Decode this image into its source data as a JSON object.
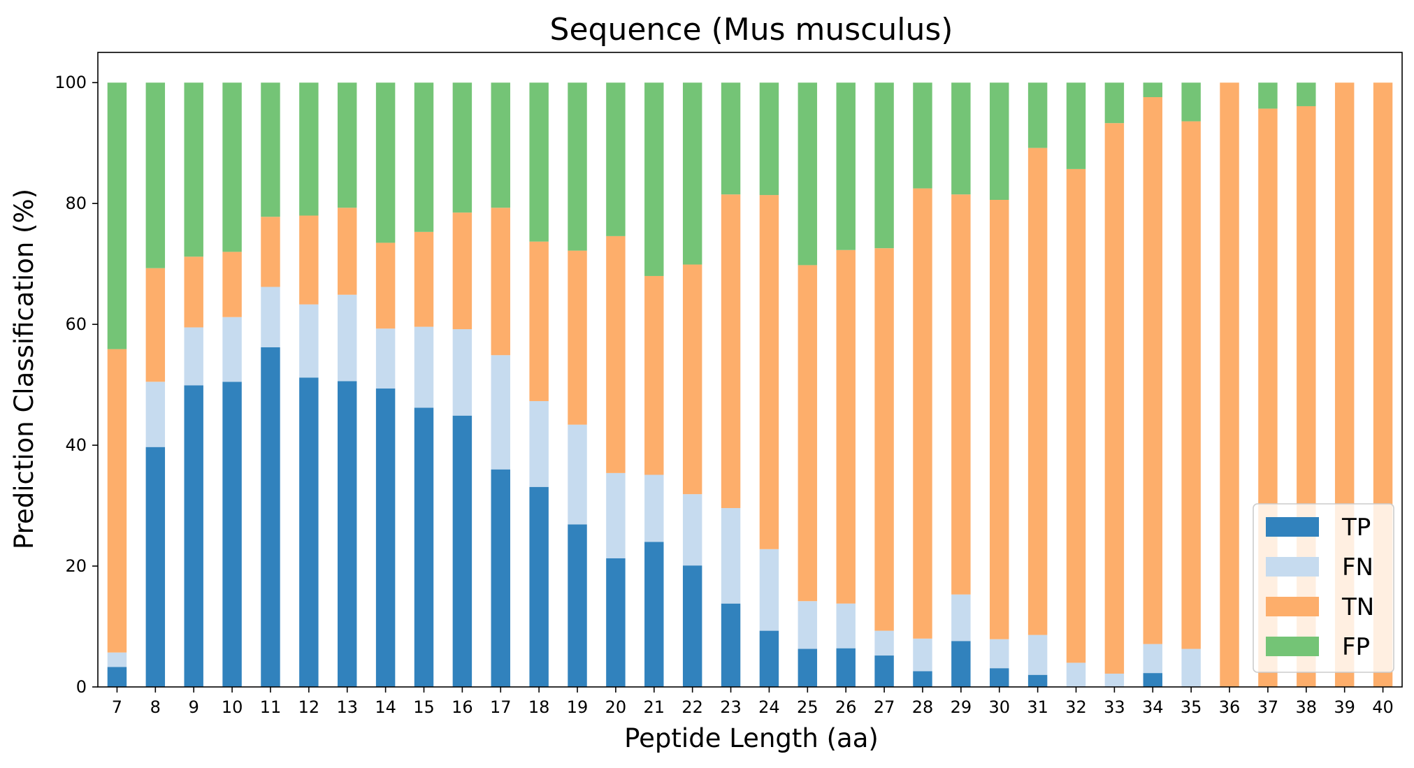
{
  "chart_data": {
    "type": "bar",
    "stacked": true,
    "title": "Sequence (Mus musculus)",
    "xlabel": "Peptide Length (aa)",
    "ylabel": "Prediction Classification (%)",
    "ylim": [
      0,
      105
    ],
    "yticks": [
      0,
      20,
      40,
      60,
      80,
      100
    ],
    "legend_position": "lower-right",
    "grid": false,
    "categories": [
      "7",
      "8",
      "9",
      "10",
      "11",
      "12",
      "13",
      "14",
      "15",
      "16",
      "17",
      "18",
      "19",
      "20",
      "21",
      "22",
      "23",
      "24",
      "25",
      "26",
      "27",
      "28",
      "29",
      "30",
      "31",
      "32",
      "33",
      "34",
      "35",
      "36",
      "37",
      "38",
      "39",
      "40"
    ],
    "series": [
      {
        "name": "TP",
        "color": "#3182bd",
        "values": [
          3.3,
          39.7,
          49.9,
          50.5,
          56.2,
          51.2,
          50.6,
          49.4,
          46.2,
          44.9,
          36.0,
          33.1,
          26.9,
          21.3,
          24.0,
          20.1,
          13.8,
          9.3,
          6.3,
          6.4,
          5.2,
          2.6,
          7.6,
          3.1,
          2.0,
          0,
          0,
          2.3,
          0,
          0,
          0,
          0,
          0,
          0
        ]
      },
      {
        "name": "FN",
        "color": "#c6dbef",
        "values": [
          2.4,
          10.8,
          9.6,
          10.7,
          10.0,
          12.1,
          14.3,
          9.9,
          13.4,
          14.3,
          18.9,
          14.2,
          16.5,
          14.1,
          11.1,
          11.8,
          15.8,
          13.5,
          7.9,
          7.4,
          4.1,
          5.4,
          7.7,
          4.8,
          6.6,
          4.0,
          2.2,
          4.8,
          6.3,
          0,
          0,
          0,
          0,
          0
        ]
      },
      {
        "name": "TN",
        "color": "#fdae6b",
        "values": [
          50.2,
          18.8,
          11.7,
          10.8,
          11.6,
          14.7,
          14.4,
          14.2,
          15.7,
          19.3,
          24.4,
          26.4,
          28.8,
          39.2,
          32.9,
          38.0,
          51.9,
          58.6,
          55.6,
          58.5,
          63.3,
          74.5,
          66.2,
          72.7,
          80.6,
          81.7,
          91.1,
          90.5,
          87.3,
          100.0,
          95.7,
          96.1,
          100.0,
          100.0
        ]
      },
      {
        "name": "FP",
        "color": "#74c476",
        "values": [
          44.1,
          30.7,
          28.8,
          28.0,
          22.2,
          22.0,
          20.7,
          26.5,
          24.7,
          21.5,
          20.7,
          26.3,
          27.8,
          25.4,
          32.0,
          30.1,
          18.5,
          18.6,
          30.2,
          27.7,
          27.4,
          17.5,
          18.5,
          19.4,
          10.8,
          14.3,
          6.7,
          2.4,
          6.4,
          0,
          4.3,
          3.9,
          0,
          0
        ]
      }
    ]
  }
}
